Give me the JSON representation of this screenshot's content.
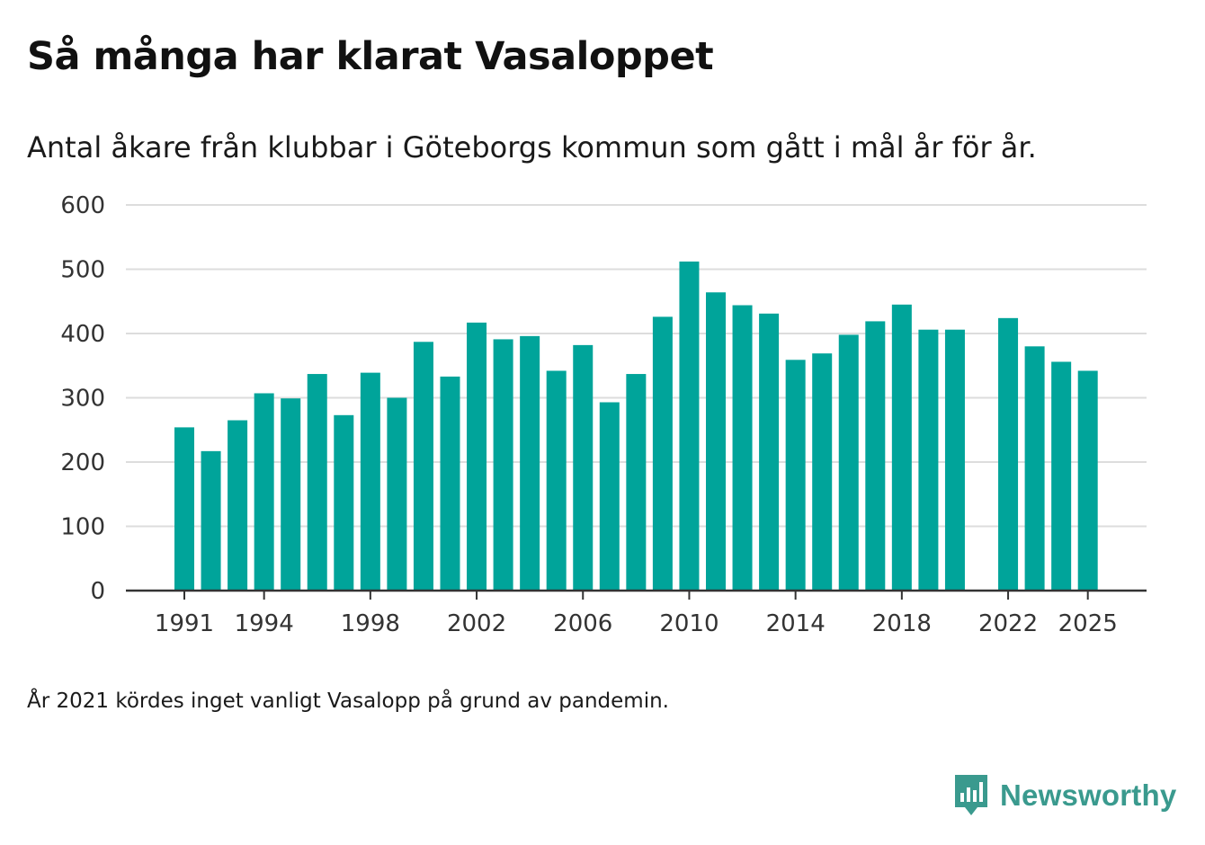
{
  "title": "Så många har klarat Vasaloppet",
  "subtitle": "Antal åkare från klubbar i Göteborgs kommun som gått i mål år för år.",
  "footnote": "År 2021 kördes inget vanligt Vasalopp på grund av pandemin.",
  "brand": {
    "name": "Newsworthy",
    "icon": "newsworthy-logo-icon",
    "color": "#3a9a8e"
  },
  "colors": {
    "bar": "#00a49a",
    "grid": "#dddddd",
    "axis": "#333333"
  },
  "chart_data": {
    "type": "bar",
    "title": "Så många har klarat Vasaloppet",
    "xlabel": "",
    "ylabel": "",
    "ylim": [
      0,
      600
    ],
    "yticks": [
      0,
      100,
      200,
      300,
      400,
      500,
      600
    ],
    "xticks": [
      1991,
      1994,
      1998,
      2002,
      2006,
      2010,
      2014,
      2018,
      2022,
      2025
    ],
    "grid": true,
    "categories": [
      1991,
      1992,
      1993,
      1994,
      1995,
      1996,
      1997,
      1998,
      1999,
      2000,
      2001,
      2002,
      2003,
      2004,
      2005,
      2006,
      2007,
      2008,
      2009,
      2010,
      2011,
      2012,
      2013,
      2014,
      2015,
      2016,
      2017,
      2018,
      2019,
      2020,
      2021,
      2022,
      2023,
      2024,
      2025
    ],
    "values": [
      254,
      217,
      265,
      307,
      299,
      337,
      273,
      339,
      300,
      387,
      333,
      417,
      391,
      396,
      342,
      382,
      293,
      337,
      426,
      512,
      464,
      444,
      431,
      359,
      369,
      398,
      419,
      445,
      406,
      406,
      null,
      424,
      380,
      356,
      342
    ]
  }
}
